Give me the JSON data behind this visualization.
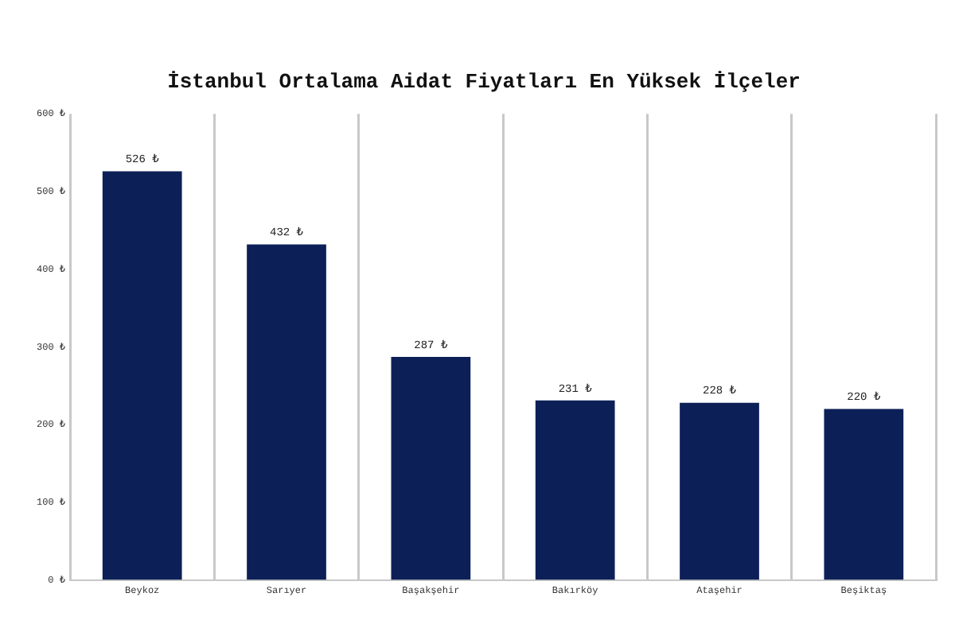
{
  "chart_data": {
    "type": "bar",
    "title": "İstanbul Ortalama Aidat Fiyatları En Yüksek İlçeler",
    "categories": [
      "Beykoz",
      "Sarıyer",
      "Başakşehir",
      "Bakırköy",
      "Ataşehir",
      "Beşiktaş"
    ],
    "values": [
      526,
      432,
      287,
      231,
      228,
      220
    ],
    "value_labels": [
      "526 ₺",
      "432 ₺",
      "287 ₺",
      "231 ₺",
      "228 ₺",
      "220 ₺"
    ],
    "color": "#0c2057",
    "ylim": [
      0,
      600
    ],
    "yticks": [
      {
        "value": 0,
        "label": "0 ₺"
      },
      {
        "value": 100,
        "label": "100 ₺"
      },
      {
        "value": 200,
        "label": "200 ₺"
      },
      {
        "value": 300,
        "label": "300 ₺"
      },
      {
        "value": 400,
        "label": "400 ₺"
      },
      {
        "value": 500,
        "label": "500 ₺"
      },
      {
        "value": 600,
        "label": "600 ₺"
      }
    ],
    "grid": "x"
  }
}
